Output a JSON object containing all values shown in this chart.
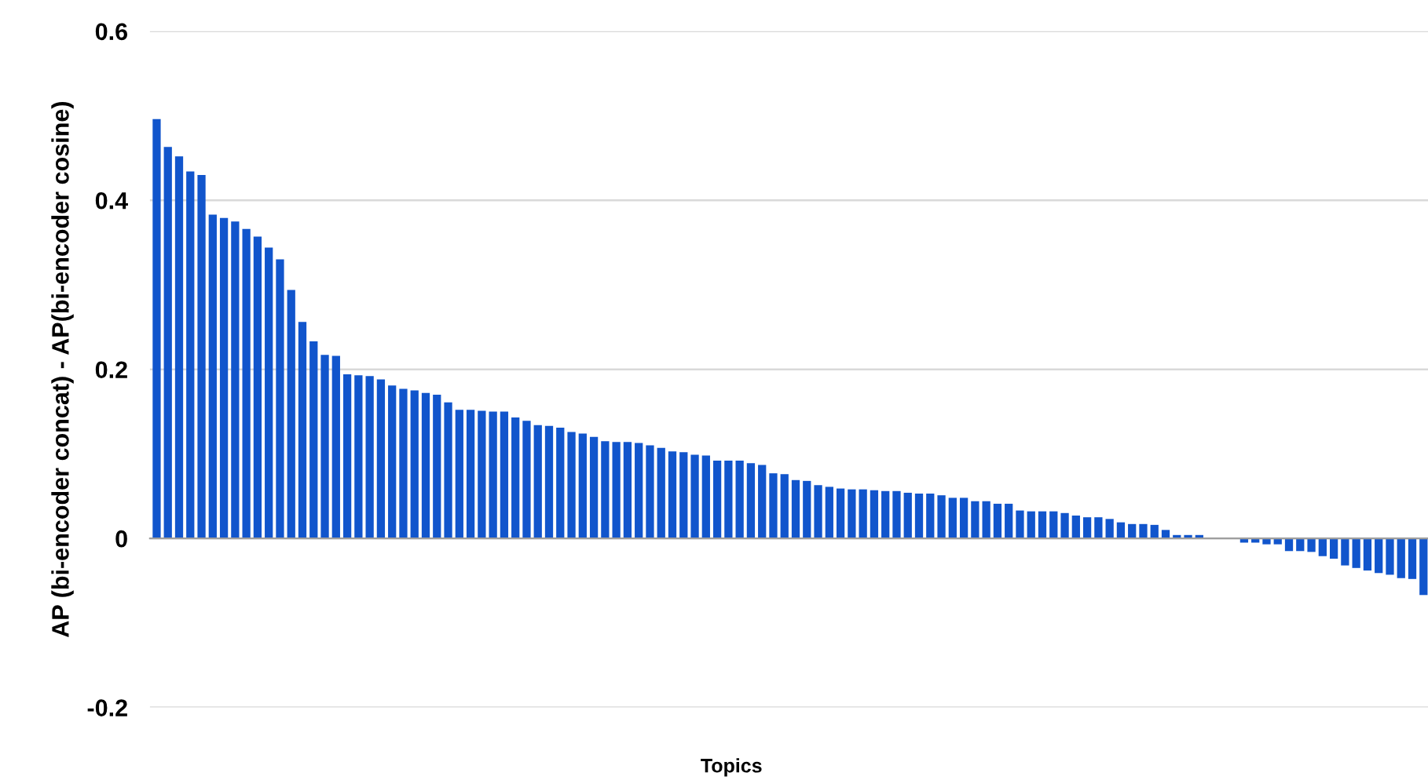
{
  "chart_data": {
    "type": "bar",
    "xlabel": "Topics",
    "ylabel": "AP (bi-encoder concat) - AP(bi-encoder cosine)",
    "color": "#1155cc",
    "categories": [
      null,
      null,
      null,
      null,
      null,
      null,
      null,
      null,
      null,
      null,
      null,
      null,
      null,
      null,
      null,
      null,
      null,
      null,
      null,
      null,
      null,
      null,
      null,
      null,
      null,
      null,
      null,
      null,
      null,
      null,
      null,
      null,
      null,
      null,
      null,
      null,
      null,
      null,
      null,
      null,
      null,
      null,
      null,
      null,
      null,
      null,
      null,
      null,
      null,
      null,
      null,
      null,
      null,
      null,
      null,
      null,
      null,
      null,
      null,
      null,
      null,
      null,
      null,
      null,
      null,
      null,
      null,
      null,
      null,
      null,
      null,
      null,
      null,
      null,
      null,
      null,
      null,
      null,
      null,
      null,
      null,
      null,
      null,
      null,
      null,
      null,
      null,
      null,
      null,
      null,
      null,
      null,
      null,
      null,
      null,
      null,
      null,
      null,
      null,
      null,
      null,
      null,
      null,
      null,
      null,
      null,
      null,
      null,
      null,
      null,
      null,
      null,
      null,
      null
    ],
    "values": [
      0.496,
      0.463,
      0.452,
      0.434,
      0.43,
      0.383,
      0.379,
      0.375,
      0.366,
      0.357,
      0.344,
      0.33,
      0.294,
      0.256,
      0.233,
      0.217,
      0.216,
      0.194,
      0.193,
      0.192,
      0.188,
      0.181,
      0.177,
      0.175,
      0.172,
      0.17,
      0.161,
      0.152,
      0.152,
      0.151,
      0.15,
      0.15,
      0.143,
      0.139,
      0.134,
      0.133,
      0.131,
      0.126,
      0.124,
      0.12,
      0.115,
      0.114,
      0.114,
      0.113,
      0.11,
      0.107,
      0.103,
      0.102,
      0.099,
      0.098,
      0.092,
      0.092,
      0.092,
      0.089,
      0.087,
      0.077,
      0.076,
      0.069,
      0.068,
      0.063,
      0.061,
      0.059,
      0.058,
      0.058,
      0.057,
      0.056,
      0.056,
      0.054,
      0.053,
      0.053,
      0.051,
      0.048,
      0.048,
      0.044,
      0.044,
      0.041,
      0.041,
      0.033,
      0.032,
      0.032,
      0.032,
      0.03,
      0.027,
      0.025,
      0.025,
      0.023,
      0.019,
      0.017,
      0.017,
      0.016,
      0.01,
      0.004,
      0.004,
      0.004,
      0,
      0,
      0,
      -0.005,
      -0.005,
      -0.007,
      -0.007,
      -0.015,
      -0.015,
      -0.016,
      -0.021,
      -0.024,
      -0.032,
      -0.035,
      -0.038,
      -0.041,
      -0.043,
      -0.047,
      -0.048,
      -0.067
    ],
    "ylim": [
      -0.2,
      0.6
    ],
    "yticks": [
      -0.2,
      0,
      0.2,
      0.4,
      0.6
    ],
    "grid": "y"
  }
}
